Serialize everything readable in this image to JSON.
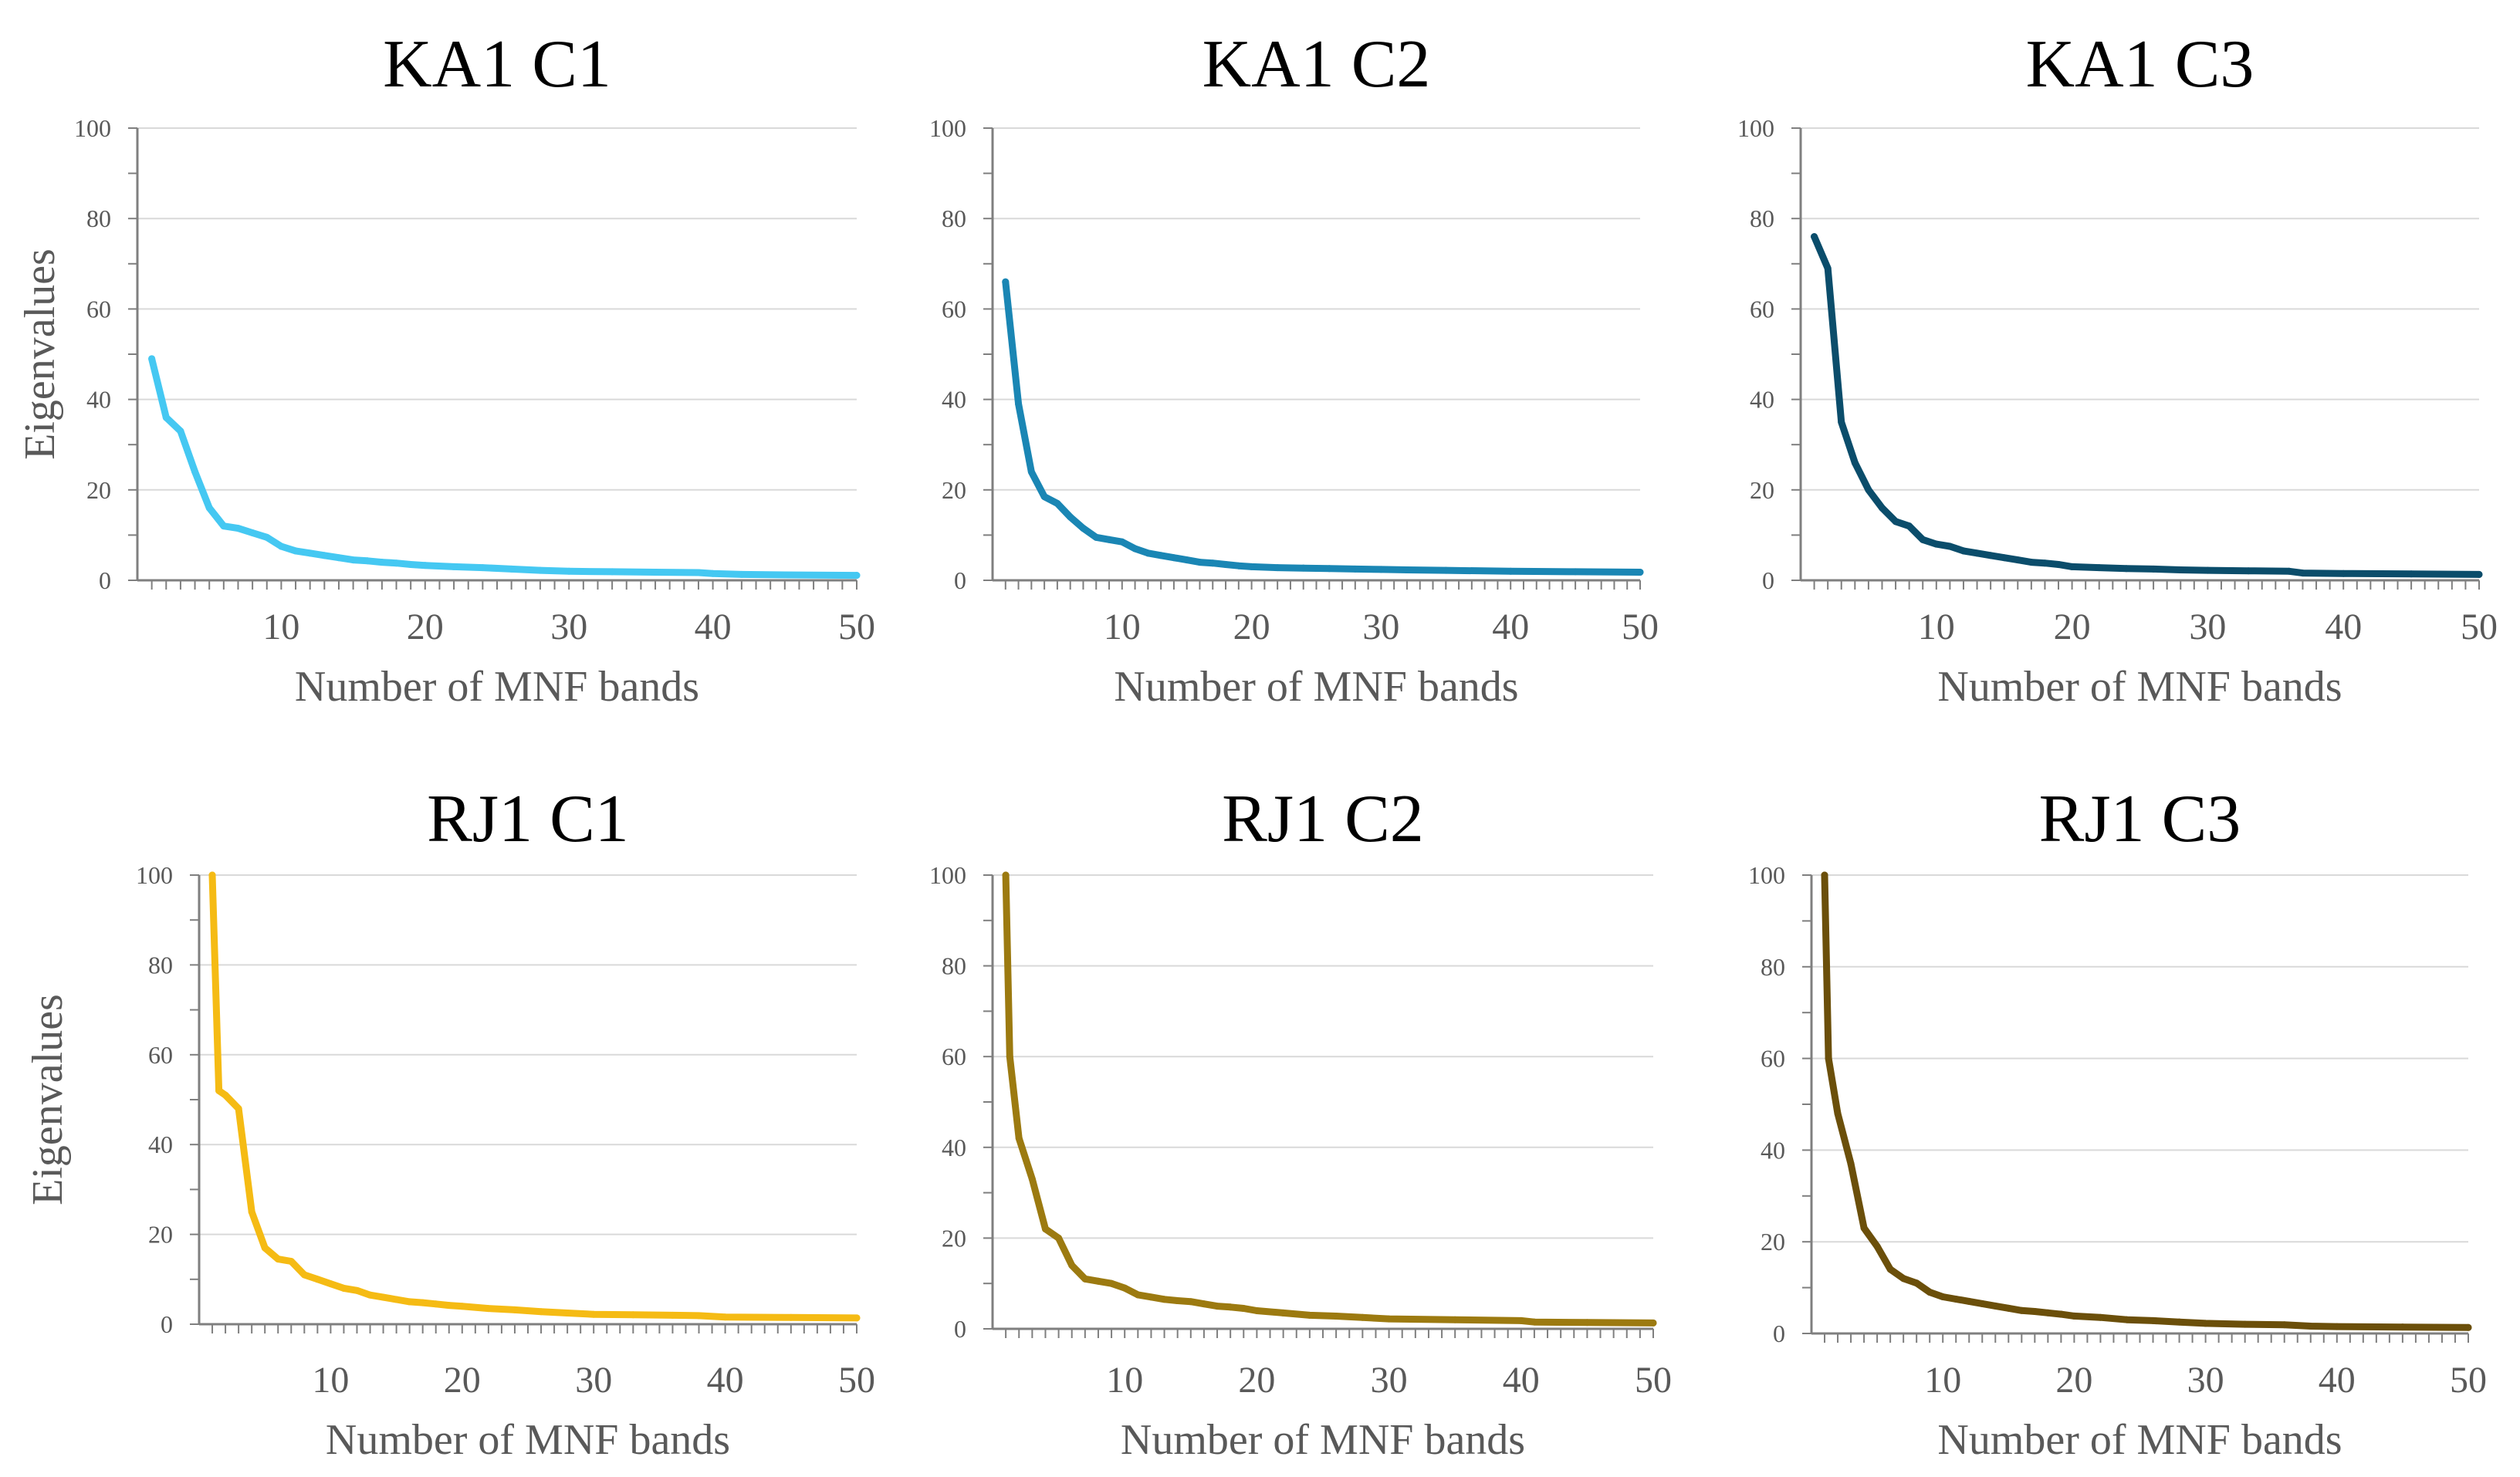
{
  "chart_data": [
    {
      "type": "line",
      "title": "KA1 C1",
      "xlabel": "Number of MNF bands",
      "ylabel": "Eigenvalues",
      "xlim": [
        0,
        50
      ],
      "ylim": [
        0,
        100
      ],
      "yticks": [
        0,
        20,
        40,
        60,
        80,
        100
      ],
      "xticks": [
        10,
        20,
        30,
        40,
        50
      ],
      "grid": true,
      "color": "#45c8f2",
      "series": [
        {
          "name": "KA1 C1",
          "x": [
            1,
            2,
            3,
            4,
            5,
            6,
            7,
            8,
            9,
            10,
            11,
            12,
            13,
            14,
            15,
            16,
            17,
            18,
            19,
            20,
            22,
            24,
            26,
            28,
            30,
            33,
            36,
            39,
            40,
            42,
            45,
            50
          ],
          "values": [
            49,
            36,
            33,
            24,
            16,
            12,
            11.5,
            10.5,
            9.5,
            7.5,
            6.5,
            6,
            5.5,
            5,
            4.5,
            4.3,
            4,
            3.8,
            3.5,
            3.3,
            3,
            2.8,
            2.5,
            2.2,
            2,
            1.9,
            1.8,
            1.7,
            1.5,
            1.3,
            1.2,
            1.1
          ]
        }
      ]
    },
    {
      "type": "line",
      "title": "KA1 C2",
      "xlabel": "Number of MNF bands",
      "ylabel": "",
      "xlim": [
        0,
        50
      ],
      "ylim": [
        0,
        100
      ],
      "yticks": [
        0,
        20,
        40,
        60,
        80,
        100
      ],
      "xticks": [
        10,
        20,
        30,
        40,
        50
      ],
      "grid": true,
      "color": "#1a86b4",
      "series": [
        {
          "name": "KA1 C2",
          "x": [
            1,
            2,
            3,
            4,
            5,
            6,
            7,
            8,
            9,
            10,
            11,
            12,
            13,
            14,
            15,
            16,
            17,
            18,
            19,
            20,
            22,
            24,
            26,
            28,
            30,
            32,
            35,
            40,
            45,
            50
          ],
          "values": [
            66,
            39,
            24,
            18.5,
            17,
            14,
            11.5,
            9.5,
            9,
            8.5,
            7,
            6,
            5.5,
            5,
            4.5,
            4,
            3.8,
            3.5,
            3.2,
            3,
            2.8,
            2.7,
            2.6,
            2.5,
            2.4,
            2.3,
            2.2,
            2,
            1.9,
            1.8
          ]
        }
      ]
    },
    {
      "type": "line",
      "title": "KA1 C3",
      "xlabel": "Number of MNF bands",
      "ylabel": "",
      "xlim": [
        0,
        50
      ],
      "ylim": [
        0,
        100
      ],
      "yticks": [
        0,
        20,
        40,
        60,
        80,
        100
      ],
      "xticks": [
        10,
        20,
        30,
        40,
        50
      ],
      "grid": true,
      "color": "#0b4d6b",
      "series": [
        {
          "name": "KA1 C3",
          "x": [
            1,
            2,
            3,
            4,
            5,
            6,
            7,
            8,
            9,
            10,
            11,
            12,
            13,
            14,
            15,
            16,
            17,
            18,
            19,
            20,
            22,
            24,
            26,
            28,
            30,
            33,
            36,
            37,
            40,
            45,
            50
          ],
          "values": [
            76,
            69,
            35,
            26,
            20,
            16,
            13,
            12,
            9,
            8,
            7.5,
            6.5,
            6,
            5.5,
            5,
            4.5,
            4,
            3.8,
            3.5,
            3,
            2.8,
            2.6,
            2.5,
            2.3,
            2.2,
            2.1,
            2,
            1.6,
            1.5,
            1.4,
            1.3
          ]
        }
      ]
    },
    {
      "type": "line",
      "title": "RJ1 C1",
      "xlabel": "Number of MNF bands",
      "ylabel": "Eigenvalues",
      "xlim": [
        0,
        50
      ],
      "ylim": [
        0,
        100
      ],
      "yticks": [
        0,
        20,
        40,
        60,
        80,
        100
      ],
      "xticks": [
        10,
        20,
        30,
        40,
        50
      ],
      "grid": true,
      "color": "#f5bb14",
      "series": [
        {
          "name": "RJ1 C1",
          "x": [
            1,
            1.5,
            2,
            3,
            4,
            5,
            6,
            7,
            8,
            9,
            10,
            11,
            12,
            13,
            14,
            15,
            16,
            17,
            18,
            19,
            20,
            22,
            24,
            26,
            28,
            30,
            33,
            36,
            38,
            40,
            45,
            50
          ],
          "values": [
            100,
            52,
            51,
            48,
            25,
            17,
            14.5,
            14,
            11,
            10,
            9,
            8,
            7.5,
            6.5,
            6,
            5.5,
            5,
            4.8,
            4.5,
            4.2,
            4,
            3.5,
            3.2,
            2.8,
            2.5,
            2.2,
            2.1,
            2,
            1.9,
            1.6,
            1.5,
            1.4
          ]
        }
      ]
    },
    {
      "type": "line",
      "title": "RJ1 C2",
      "xlabel": "Number of MNF bands",
      "ylabel": "",
      "xlim": [
        0,
        50
      ],
      "ylim": [
        0,
        100
      ],
      "yticks": [
        0,
        20,
        40,
        60,
        80,
        100
      ],
      "xticks": [
        10,
        20,
        30,
        40,
        50
      ],
      "grid": true,
      "color": "#9c7a10",
      "series": [
        {
          "name": "RJ1 C2",
          "x": [
            1,
            1.3,
            2,
            3,
            4,
            5,
            6,
            7,
            8,
            9,
            10,
            11,
            12,
            13,
            14,
            15,
            16,
            17,
            18,
            19,
            20,
            22,
            24,
            26,
            28,
            30,
            35,
            40,
            41,
            45,
            50
          ],
          "values": [
            100,
            60,
            42,
            33,
            22,
            20,
            14,
            11,
            10.5,
            10,
            9,
            7.5,
            7,
            6.5,
            6.2,
            6,
            5.5,
            5,
            4.8,
            4.5,
            4,
            3.5,
            3,
            2.8,
            2.5,
            2.2,
            2,
            1.8,
            1.5,
            1.4,
            1.3
          ]
        }
      ]
    },
    {
      "type": "line",
      "title": "RJ1 C3",
      "xlabel": "Number of MNF bands",
      "ylabel": "",
      "xlim": [
        0,
        50
      ],
      "ylim": [
        0,
        100
      ],
      "yticks": [
        0,
        20,
        40,
        60,
        80,
        100
      ],
      "xticks": [
        10,
        20,
        30,
        40,
        50
      ],
      "grid": true,
      "color": "#6b4f0a",
      "series": [
        {
          "name": "RJ1 C3",
          "x": [
            1,
            1.3,
            2,
            3,
            4,
            5,
            6,
            7,
            8,
            9,
            10,
            11,
            12,
            13,
            14,
            15,
            16,
            17,
            18,
            19,
            20,
            22,
            24,
            26,
            28,
            30,
            33,
            36,
            38,
            40,
            45,
            50
          ],
          "values": [
            100,
            60,
            48,
            37,
            23,
            19,
            14,
            12,
            11,
            9,
            8,
            7.5,
            7,
            6.5,
            6,
            5.5,
            5,
            4.8,
            4.5,
            4.2,
            3.8,
            3.5,
            3,
            2.8,
            2.5,
            2.2,
            2,
            1.9,
            1.6,
            1.5,
            1.4,
            1.3
          ]
        }
      ]
    }
  ]
}
